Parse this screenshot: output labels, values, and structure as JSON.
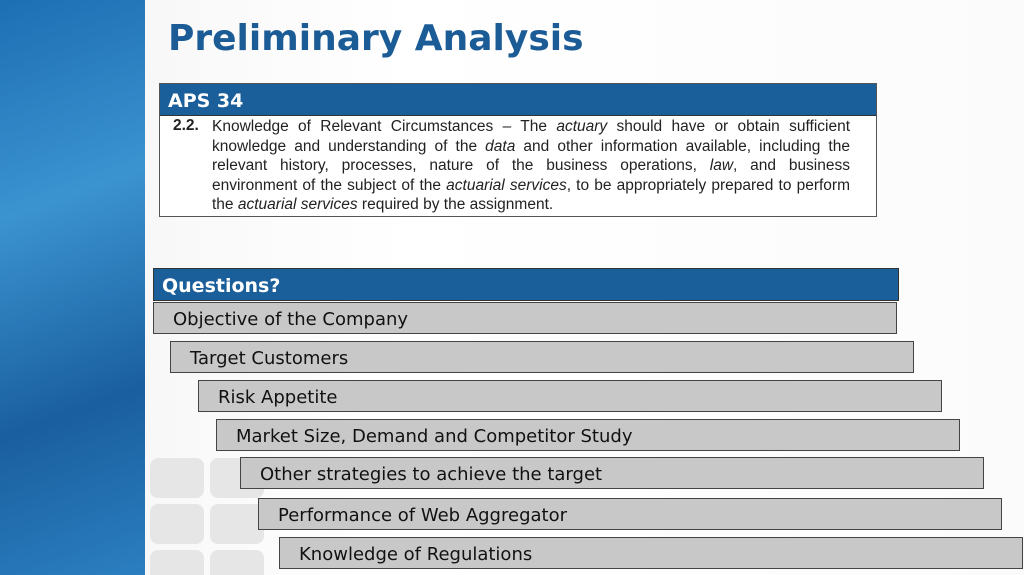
{
  "title": "Preliminary Analysis",
  "aps": {
    "heading": "APS 34",
    "clause_number": "2.2.",
    "clause_parts": [
      {
        "text": "Knowledge of Relevant Circumstances – The ",
        "italic": false
      },
      {
        "text": "actuary",
        "italic": true
      },
      {
        "text": " should have or obtain sufficient knowledge and understanding of the ",
        "italic": false
      },
      {
        "text": "data",
        "italic": true
      },
      {
        "text": " and other information available, including the relevant history, processes, nature of the business operations, ",
        "italic": false
      },
      {
        "text": "law",
        "italic": true
      },
      {
        "text": ", and business environment of the subject of the ",
        "italic": false
      },
      {
        "text": "actuarial services",
        "italic": true
      },
      {
        "text": ", to be appropriately prepared to perform the ",
        "italic": false
      },
      {
        "text": "actuarial services",
        "italic": true
      },
      {
        "text": " required by the assignment.",
        "italic": false
      }
    ]
  },
  "questions": {
    "heading": "Questions?",
    "items": [
      "Objective of the Company",
      "Target Customers",
      "Risk Appetite",
      "Market Size, Demand and Competitor Study",
      "Other strategies to achieve the target",
      "Performance of Web Aggregator",
      "Knowledge of Regulations"
    ]
  }
}
